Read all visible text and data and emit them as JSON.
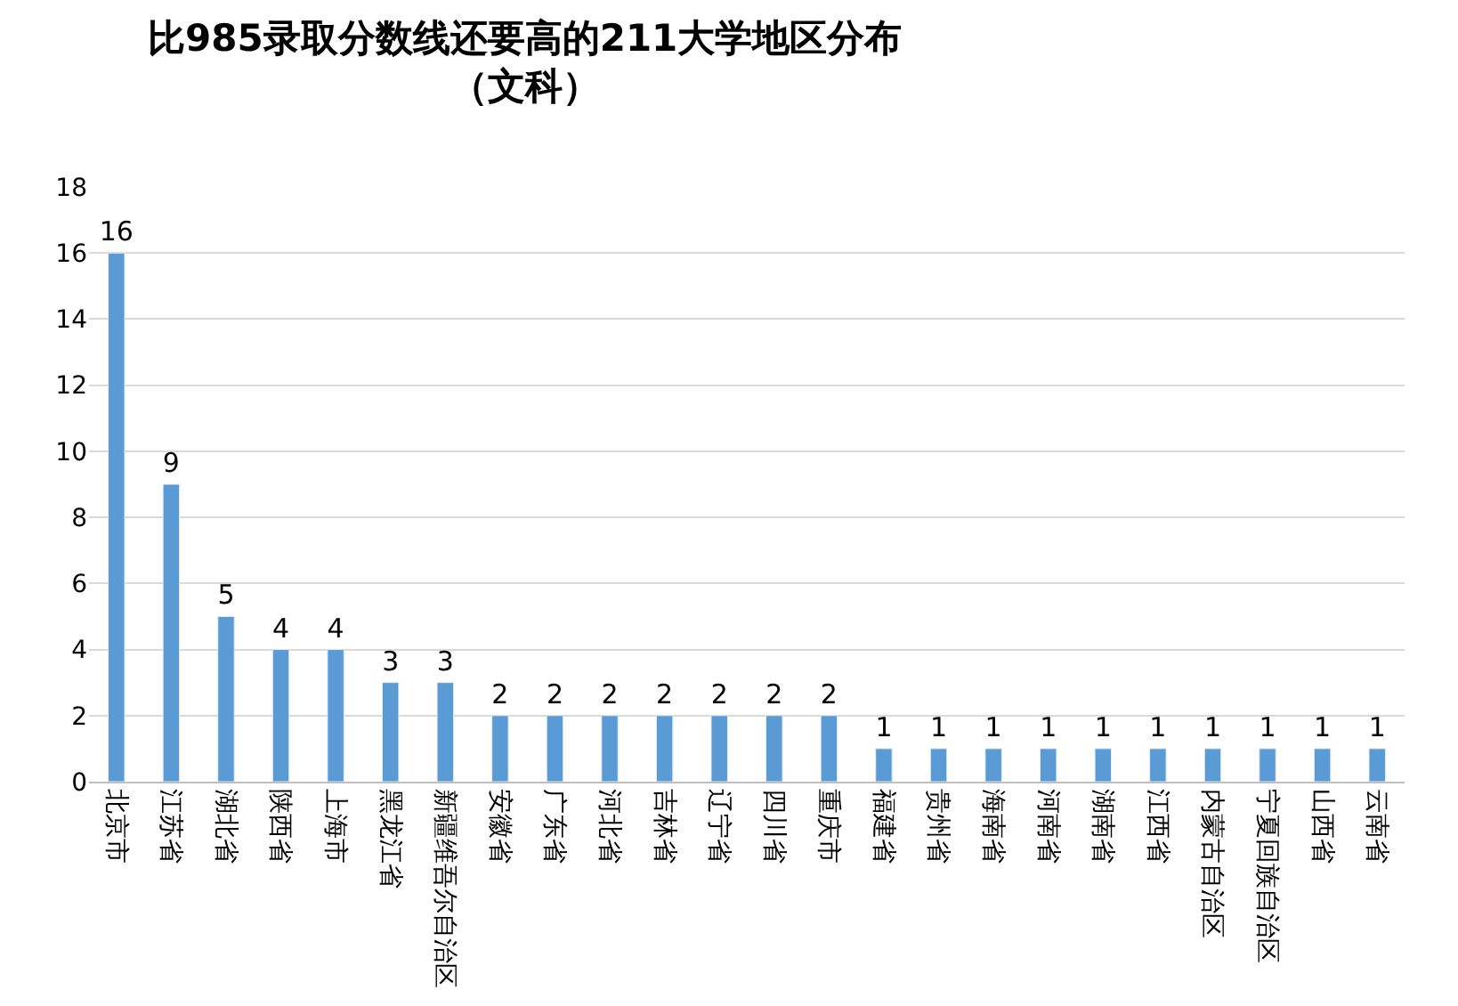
{
  "chart_data": {
    "type": "bar",
    "title": "比985录取分数线还要高的211大学地区分布（文科）",
    "categories": [
      "北京市",
      "江苏省",
      "湖北省",
      "陕西省",
      "上海市",
      "黑龙江省",
      "新疆维吾尔自治区",
      "安徽省",
      "广东省",
      "河北省",
      "吉林省",
      "辽宁省",
      "四川省",
      "重庆市",
      "福建省",
      "贵州省",
      "海南省",
      "河南省",
      "湖南省",
      "江西省",
      "内蒙古自治区",
      "宁夏回族自治区",
      "山西省",
      "云南省"
    ],
    "values": [
      16,
      9,
      5,
      4,
      4,
      3,
      3,
      2,
      2,
      2,
      2,
      2,
      2,
      2,
      1,
      1,
      1,
      1,
      1,
      1,
      1,
      1,
      1,
      1
    ],
    "color": "#5b9bd5",
    "ylim": [
      0,
      18
    ],
    "yticks": [
      0,
      2,
      4,
      6,
      8,
      10,
      12,
      14,
      16,
      18
    ],
    "grid": "y",
    "data_labels": true,
    "legend": false
  }
}
